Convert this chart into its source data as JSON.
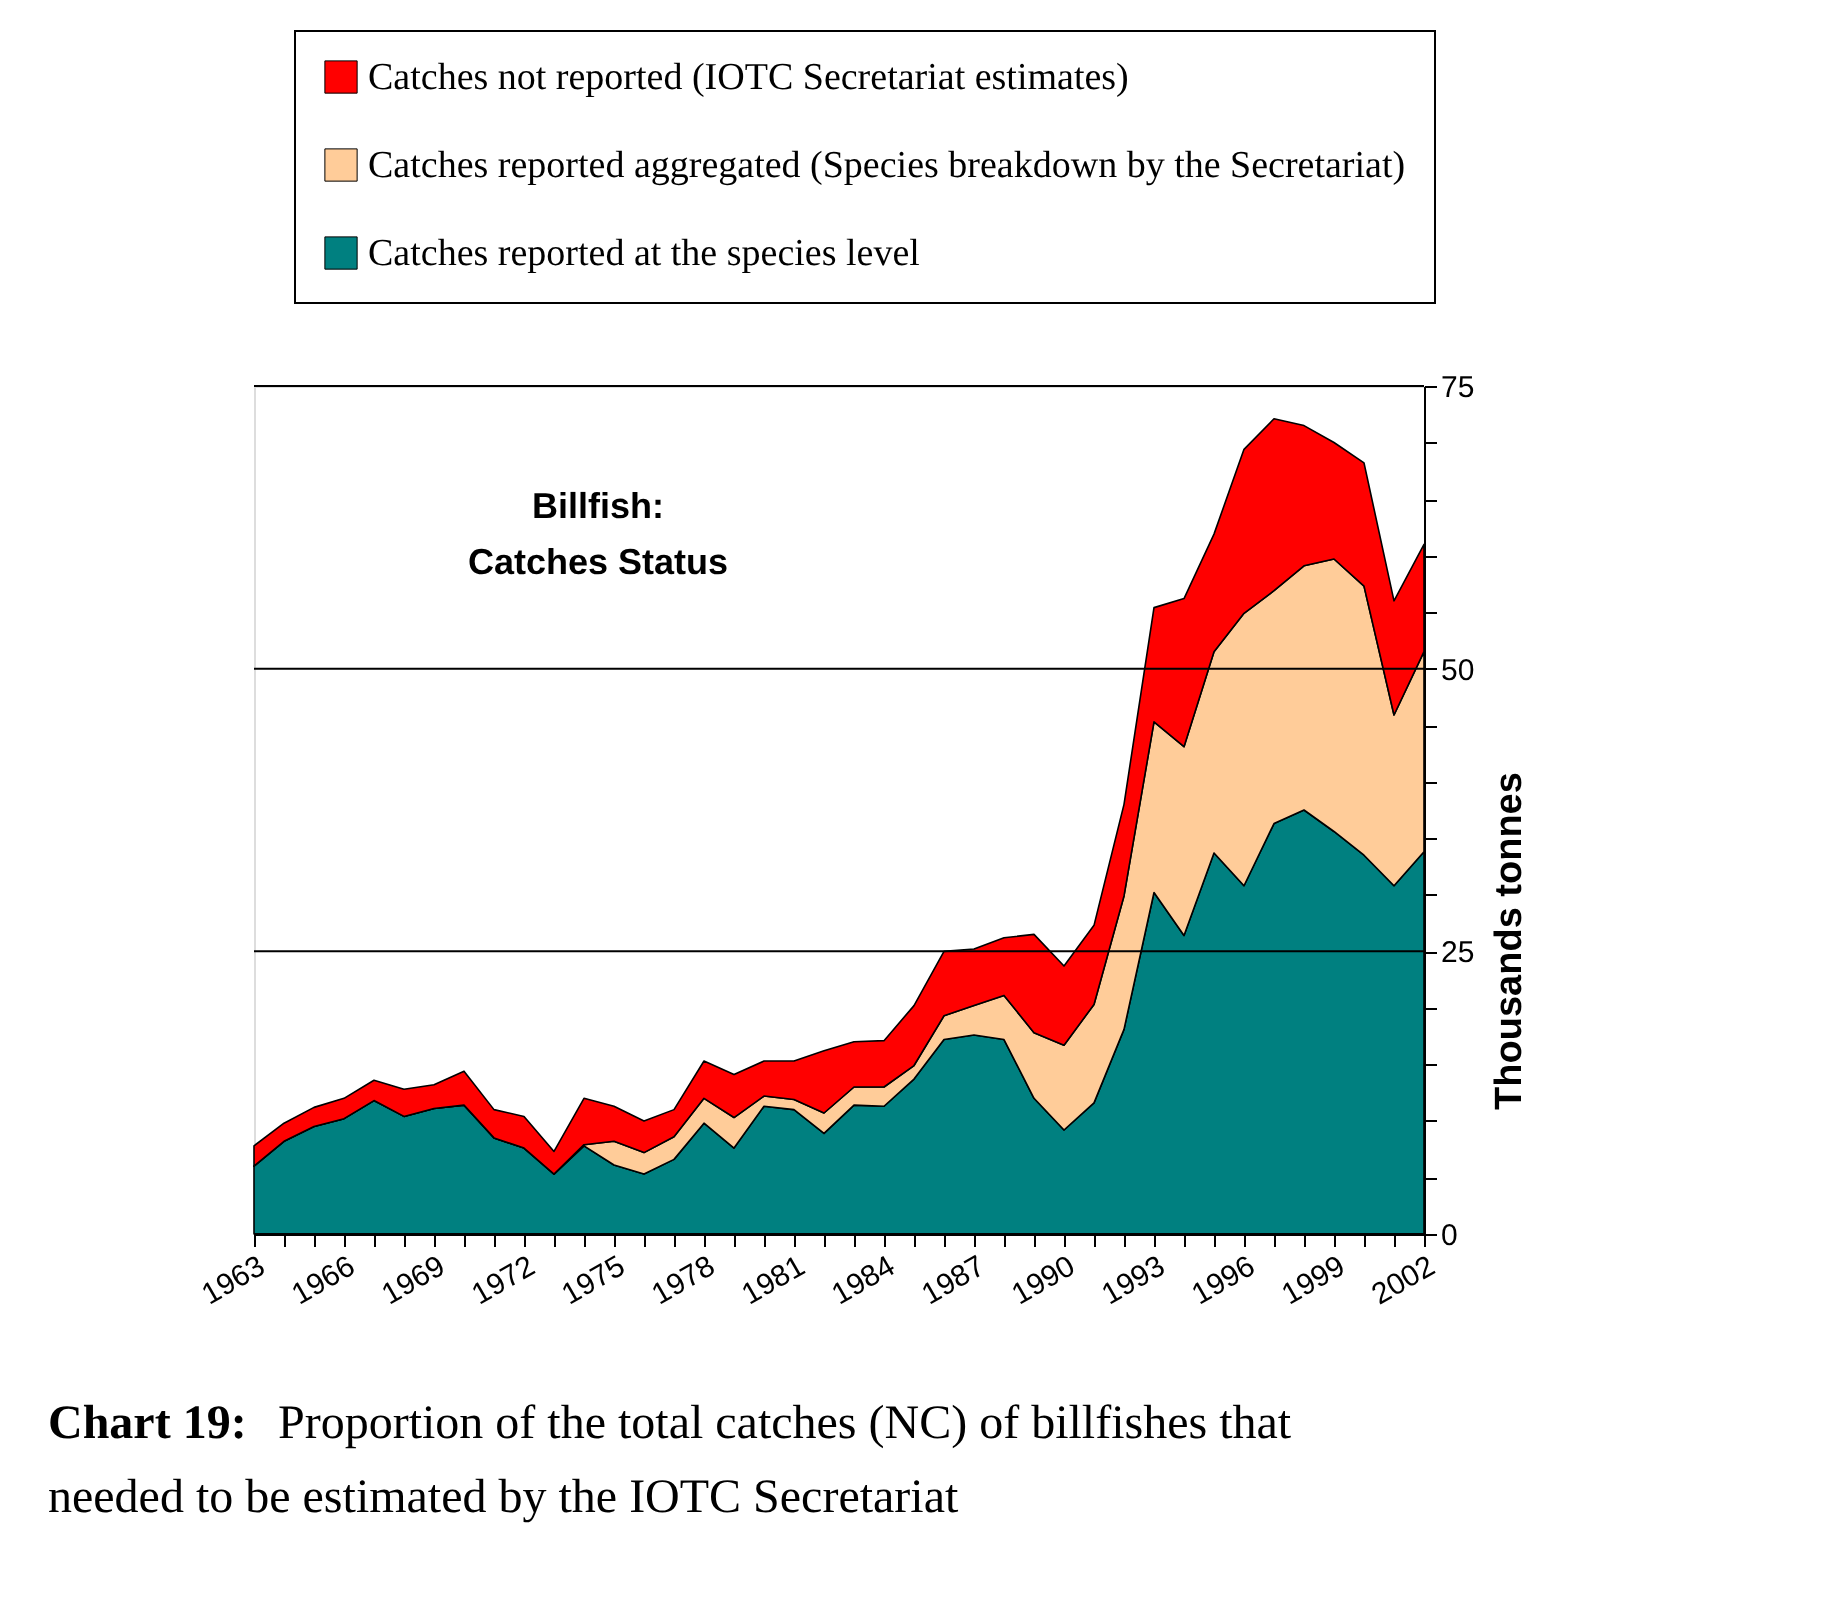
{
  "chart_data": {
    "type": "area",
    "stacked": true,
    "title": "Billfish:\nCatches Status",
    "ylabel": "Thousands   tonnes",
    "x": [
      1963,
      1964,
      1965,
      1966,
      1967,
      1968,
      1969,
      1970,
      1971,
      1972,
      1973,
      1974,
      1975,
      1976,
      1977,
      1978,
      1979,
      1980,
      1981,
      1982,
      1983,
      1984,
      1985,
      1986,
      1987,
      1988,
      1989,
      1990,
      1991,
      1992,
      1993,
      1994,
      1995,
      1996,
      1997,
      1998,
      1999,
      2000,
      2001,
      2002
    ],
    "series": [
      {
        "name": "Catches reported at the species level",
        "color": "#008080",
        "values": [
          6.0,
          8.2,
          9.5,
          10.2,
          11.8,
          10.4,
          11.1,
          11.4,
          8.5,
          7.6,
          5.3,
          7.8,
          6.1,
          5.3,
          6.6,
          9.8,
          7.6,
          11.3,
          11.0,
          8.9,
          11.4,
          11.3,
          13.7,
          17.2,
          17.6,
          17.2,
          12.0,
          9.2,
          11.6,
          18.1,
          30.2,
          26.4,
          33.7,
          30.8,
          36.3,
          37.5,
          35.6,
          33.5,
          30.8,
          33.8
        ]
      },
      {
        "name": "Catches reported aggregated (Species breakdown by the Secretariat)",
        "color": "#ffcc99",
        "values": [
          0,
          0,
          0,
          0,
          0,
          0,
          0,
          0,
          0,
          0,
          0,
          0.1,
          2.1,
          1.9,
          2.0,
          2.2,
          2.7,
          0.9,
          0.9,
          1.8,
          1.6,
          1.7,
          1.2,
          2.1,
          2.6,
          3.9,
          5.8,
          7.5,
          8.7,
          11.8,
          15.1,
          16.7,
          17.8,
          24.1,
          20.6,
          21.6,
          24.1,
          23.8,
          15.1,
          17.7
        ]
      },
      {
        "name": "Catches not reported (IOTC Secretariat estimates)",
        "color": "#ff0000",
        "values": [
          1.8,
          1.6,
          1.7,
          1.8,
          1.8,
          2.4,
          2.1,
          3.0,
          2.5,
          2.8,
          2.0,
          4.1,
          3.1,
          2.8,
          2.4,
          3.3,
          3.8,
          3.1,
          3.4,
          5.5,
          4.0,
          4.1,
          5.3,
          5.7,
          5.0,
          5.1,
          8.7,
          7.0,
          7.0,
          8.1,
          10.1,
          13.1,
          10.4,
          14.5,
          15.2,
          12.4,
          10.3,
          10.9,
          10.1,
          9.5
        ]
      }
    ],
    "xlim": [
      1963,
      2002
    ],
    "xticks": [
      1963,
      {
        "value": 1964,
        "label": null
      },
      {
        "value": 1965,
        "label": null
      },
      1966,
      {
        "value": 1967,
        "label": null
      },
      {
        "value": 1968,
        "label": null
      },
      1969,
      {
        "value": 1970,
        "label": null
      },
      {
        "value": 1971,
        "label": null
      },
      1972,
      {
        "value": 1973,
        "label": null
      },
      {
        "value": 1974,
        "label": null
      },
      1975,
      {
        "value": 1976,
        "label": null
      },
      {
        "value": 1977,
        "label": null
      },
      1978,
      {
        "value": 1979,
        "label": null
      },
      {
        "value": 1980,
        "label": null
      },
      1981,
      {
        "value": 1982,
        "label": null
      },
      {
        "value": 1983,
        "label": null
      },
      1984,
      {
        "value": 1985,
        "label": null
      },
      {
        "value": 1986,
        "label": null
      },
      1987,
      {
        "value": 1988,
        "label": null
      },
      {
        "value": 1989,
        "label": null
      },
      1990,
      {
        "value": 1991,
        "label": null
      },
      {
        "value": 1992,
        "label": null
      },
      1993,
      {
        "value": 1994,
        "label": null
      },
      {
        "value": 1995,
        "label": null
      },
      1996,
      {
        "value": 1997,
        "label": null
      },
      {
        "value": 1998,
        "label": null
      },
      1999,
      {
        "value": 2000,
        "label": null
      },
      {
        "value": 2001,
        "label": null
      },
      2002
    ],
    "ylim": [
      0,
      75
    ],
    "yticks": [
      0,
      {
        "value": 5,
        "label": null
      },
      {
        "value": 10,
        "label": null
      },
      {
        "value": 15,
        "label": null
      },
      {
        "value": 20,
        "label": null
      },
      25,
      {
        "value": 30,
        "label": null
      },
      {
        "value": 35,
        "label": null
      },
      {
        "value": 40,
        "label": null
      },
      {
        "value": 45,
        "label": null
      },
      50,
      {
        "value": 55,
        "label": null
      },
      {
        "value": 60,
        "label": null
      },
      {
        "value": 65,
        "label": null
      },
      {
        "value": 70,
        "label": null
      },
      75
    ],
    "grid": "y",
    "legend": "top",
    "annotations": [
      "Chart 19:",
      "Proportion of the total catches (NC) of billfishes that needed to be estimated by the IOTC Secretariat"
    ]
  }
}
